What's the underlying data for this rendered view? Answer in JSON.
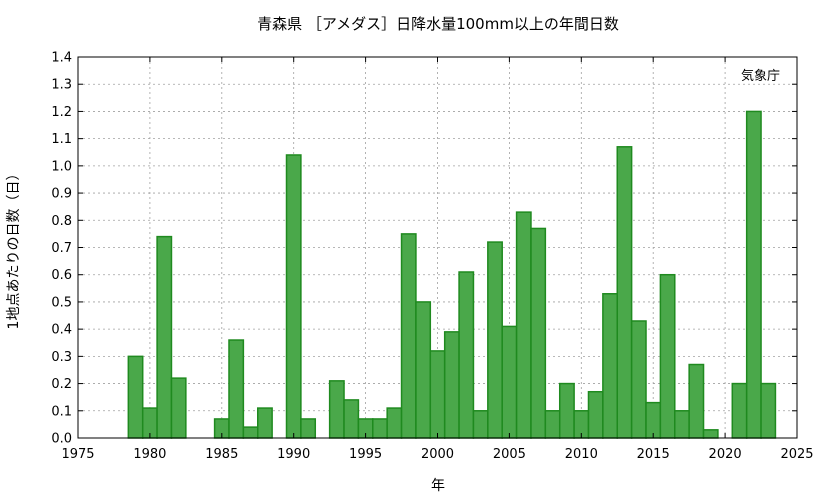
{
  "chart_data": {
    "type": "bar",
    "title": "青森県 ［アメダス］日降水量100mm以上の年間日数",
    "xlabel": "年",
    "ylabel": "1地点あたりの日数（日）",
    "annotation": "気象庁",
    "xlim": [
      1975,
      2025
    ],
    "ylim": [
      0,
      1.4
    ],
    "grid": true,
    "bar_color": "#4aa84a",
    "bar_edge_color": "#1f8a1f",
    "x_ticks": [
      "1975",
      "1980",
      "1985",
      "1990",
      "1995",
      "2000",
      "2005",
      "2010",
      "2015",
      "2020",
      "2025"
    ],
    "y_ticks": [
      "0.0",
      "0.1",
      "0.2",
      "0.3",
      "0.4",
      "0.5",
      "0.6",
      "0.7",
      "0.8",
      "0.9",
      "1.0",
      "1.1",
      "1.2",
      "1.3",
      "1.4"
    ],
    "x": [
      1976,
      1977,
      1978,
      1979,
      1980,
      1981,
      1982,
      1983,
      1984,
      1985,
      1986,
      1987,
      1988,
      1989,
      1990,
      1991,
      1992,
      1993,
      1994,
      1995,
      1996,
      1997,
      1998,
      1999,
      2000,
      2001,
      2002,
      2003,
      2004,
      2005,
      2006,
      2007,
      2008,
      2009,
      2010,
      2011,
      2012,
      2013,
      2014,
      2015,
      2016,
      2017,
      2018,
      2019,
      2020,
      2021,
      2022,
      2023
    ],
    "values": [
      0,
      0,
      0,
      0.3,
      0.11,
      0.74,
      0.22,
      0,
      0,
      0.07,
      0.36,
      0.04,
      0.11,
      0,
      1.04,
      0.07,
      0,
      0.21,
      0.14,
      0.07,
      0.07,
      0.11,
      0.75,
      0.5,
      0.32,
      0.39,
      0.61,
      0.1,
      0.72,
      0.41,
      0.83,
      0.77,
      0.1,
      0.2,
      0.1,
      0.17,
      0.53,
      1.07,
      0.43,
      0.13,
      0.6,
      0.1,
      0.27,
      0.03,
      0,
      0.2,
      1.2,
      0.2
    ]
  }
}
